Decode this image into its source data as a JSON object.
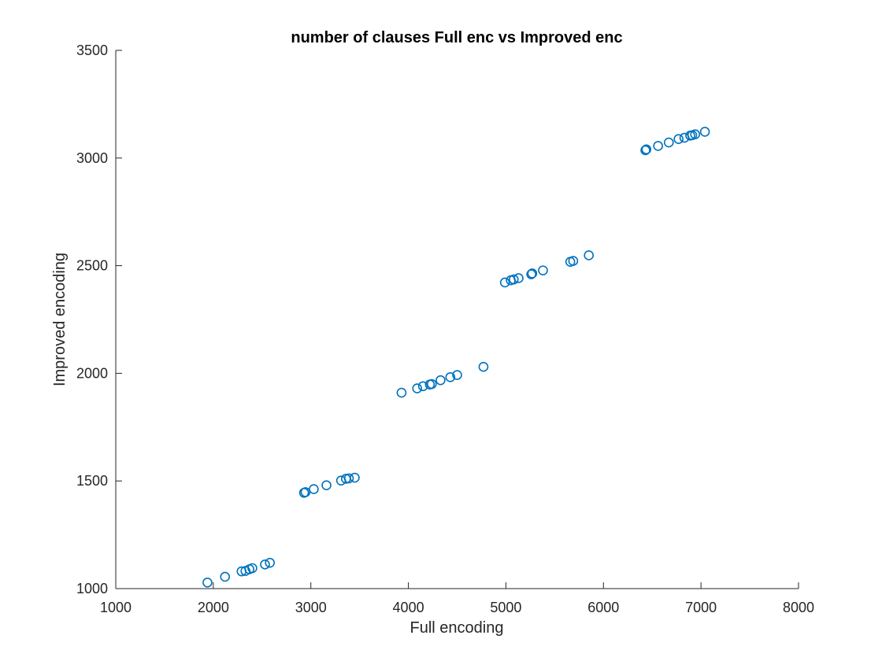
{
  "chart_data": {
    "type": "scatter",
    "title": "number of clauses Full enc vs Improved enc",
    "xlabel": "Full encoding",
    "ylabel": "Improved encoding",
    "xlim": [
      1000,
      8000
    ],
    "ylim": [
      1000,
      3500
    ],
    "xticks": [
      1000,
      2000,
      3000,
      4000,
      5000,
      6000,
      7000,
      8000
    ],
    "yticks": [
      1000,
      1500,
      2000,
      2500,
      3000,
      3500
    ],
    "marker": "circle",
    "marker_color": "#0072BD",
    "grid": false,
    "points": [
      [
        1940,
        1028
      ],
      [
        2120,
        1055
      ],
      [
        2290,
        1080
      ],
      [
        2330,
        1082
      ],
      [
        2370,
        1090
      ],
      [
        2400,
        1095
      ],
      [
        2530,
        1112
      ],
      [
        2580,
        1120
      ],
      [
        2930,
        1445
      ],
      [
        2945,
        1448
      ],
      [
        3030,
        1462
      ],
      [
        3160,
        1480
      ],
      [
        3310,
        1502
      ],
      [
        3360,
        1510
      ],
      [
        3390,
        1512
      ],
      [
        3450,
        1515
      ],
      [
        3930,
        1910
      ],
      [
        4090,
        1930
      ],
      [
        4150,
        1940
      ],
      [
        4220,
        1948
      ],
      [
        4240,
        1950
      ],
      [
        4330,
        1968
      ],
      [
        4430,
        1982
      ],
      [
        4500,
        1992
      ],
      [
        4770,
        2030
      ],
      [
        4990,
        2422
      ],
      [
        5050,
        2432
      ],
      [
        5080,
        2436
      ],
      [
        5130,
        2442
      ],
      [
        5260,
        2460
      ],
      [
        5270,
        2464
      ],
      [
        5380,
        2478
      ],
      [
        5660,
        2518
      ],
      [
        5690,
        2522
      ],
      [
        5850,
        2548
      ],
      [
        6430,
        3036
      ],
      [
        6440,
        3040
      ],
      [
        6560,
        3056
      ],
      [
        6670,
        3072
      ],
      [
        6770,
        3088
      ],
      [
        6830,
        3094
      ],
      [
        6890,
        3104
      ],
      [
        6910,
        3106
      ],
      [
        6940,
        3110
      ],
      [
        7040,
        3122
      ]
    ]
  }
}
